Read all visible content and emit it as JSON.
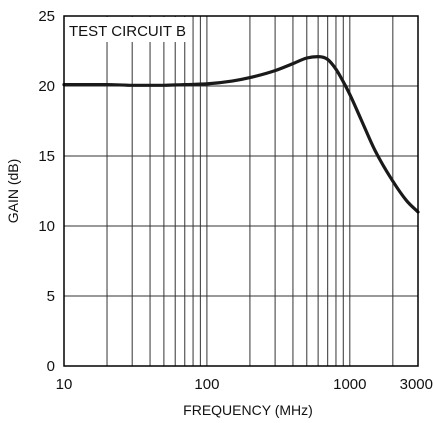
{
  "chart_data": {
    "type": "line",
    "annotation": "TEST CIRCUIT B",
    "xlabel": "FREQUENCY (MHz)",
    "ylabel": "GAIN (dB)",
    "xscale": "log",
    "xlim": [
      10,
      3000
    ],
    "ylim": [
      0,
      25
    ],
    "xticks": [
      10,
      100,
      1000,
      3000
    ],
    "xtick_labels": [
      "10",
      "100",
      "1000",
      "3000"
    ],
    "yticks": [
      0,
      5,
      10,
      15,
      20,
      25
    ],
    "ytick_labels": [
      "0",
      "5",
      "10",
      "15",
      "20",
      "25"
    ],
    "x_gridlines": [
      20,
      30,
      40,
      50,
      60,
      70,
      80,
      90,
      100,
      200,
      300,
      400,
      500,
      600,
      700,
      800,
      900,
      1000,
      2000
    ],
    "grid": true,
    "colors": {
      "line": "#1a1a1a",
      "grid": "#333333",
      "axis": "#000000"
    },
    "series": [
      {
        "x": [
          10,
          20,
          30,
          50,
          70,
          100,
          150,
          200,
          300,
          400,
          500,
          600,
          700,
          800,
          900,
          1000,
          1200,
          1500,
          2000,
          2500,
          3000
        ],
        "y": [
          20.1,
          20.1,
          20.05,
          20.05,
          20.1,
          20.15,
          20.35,
          20.6,
          21.1,
          21.6,
          22.0,
          22.1,
          21.9,
          21.2,
          20.3,
          19.4,
          17.6,
          15.4,
          13.2,
          11.8,
          11.0
        ]
      }
    ]
  }
}
